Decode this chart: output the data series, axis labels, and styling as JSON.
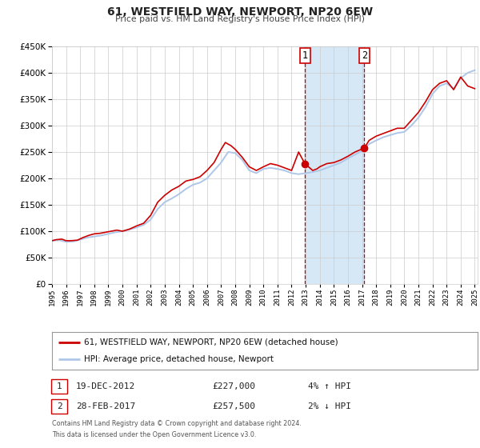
{
  "title": "61, WESTFIELD WAY, NEWPORT, NP20 6EW",
  "subtitle": "Price paid vs. HM Land Registry's House Price Index (HPI)",
  "legend_line1": "61, WESTFIELD WAY, NEWPORT, NP20 6EW (detached house)",
  "legend_line2": "HPI: Average price, detached house, Newport",
  "footnote1": "Contains HM Land Registry data © Crown copyright and database right 2024.",
  "footnote2": "This data is licensed under the Open Government Licence v3.0.",
  "annotation1": {
    "label": "1",
    "date": "19-DEC-2012",
    "price": "£227,000",
    "hpi": "4% ↑ HPI",
    "x_year": 2012.96,
    "y_val": 227000
  },
  "annotation2": {
    "label": "2",
    "date": "28-FEB-2017",
    "price": "£257,500",
    "hpi": "2% ↓ HPI",
    "x_year": 2017.16,
    "y_val": 257500
  },
  "ylim": [
    0,
    450000
  ],
  "xlim_start": 1995.0,
  "xlim_end": 2025.2,
  "hpi_color": "#aec6e8",
  "price_color": "#cc0000",
  "shade_color": "#d6e8f5",
  "grid_color": "#cccccc",
  "bg_color": "#ffffff",
  "hpi_data": [
    [
      1995.0,
      82000
    ],
    [
      1995.5,
      83000
    ],
    [
      1996.0,
      80000
    ],
    [
      1996.5,
      80500
    ],
    [
      1997.0,
      84000
    ],
    [
      1997.5,
      88000
    ],
    [
      1998.0,
      90000
    ],
    [
      1998.5,
      92000
    ],
    [
      1999.0,
      95000
    ],
    [
      1999.5,
      98000
    ],
    [
      2000.0,
      100000
    ],
    [
      2000.5,
      103000
    ],
    [
      2001.0,
      107000
    ],
    [
      2001.5,
      112000
    ],
    [
      2002.0,
      122000
    ],
    [
      2002.5,
      142000
    ],
    [
      2003.0,
      155000
    ],
    [
      2003.5,
      162000
    ],
    [
      2004.0,
      170000
    ],
    [
      2004.5,
      180000
    ],
    [
      2005.0,
      188000
    ],
    [
      2005.5,
      192000
    ],
    [
      2006.0,
      200000
    ],
    [
      2006.5,
      215000
    ],
    [
      2007.0,
      230000
    ],
    [
      2007.5,
      250000
    ],
    [
      2008.0,
      248000
    ],
    [
      2008.5,
      235000
    ],
    [
      2009.0,
      215000
    ],
    [
      2009.5,
      210000
    ],
    [
      2010.0,
      218000
    ],
    [
      2010.5,
      220000
    ],
    [
      2011.0,
      218000
    ],
    [
      2011.5,
      215000
    ],
    [
      2012.0,
      210000
    ],
    [
      2012.5,
      208000
    ],
    [
      2013.0,
      210000
    ],
    [
      2013.5,
      212000
    ],
    [
      2014.0,
      215000
    ],
    [
      2014.5,
      220000
    ],
    [
      2015.0,
      225000
    ],
    [
      2015.5,
      230000
    ],
    [
      2016.0,
      238000
    ],
    [
      2016.5,
      245000
    ],
    [
      2017.0,
      252000
    ],
    [
      2017.5,
      265000
    ],
    [
      2018.0,
      272000
    ],
    [
      2018.5,
      278000
    ],
    [
      2019.0,
      282000
    ],
    [
      2019.5,
      286000
    ],
    [
      2020.0,
      288000
    ],
    [
      2020.5,
      300000
    ],
    [
      2021.0,
      315000
    ],
    [
      2021.5,
      335000
    ],
    [
      2022.0,
      360000
    ],
    [
      2022.5,
      375000
    ],
    [
      2023.0,
      380000
    ],
    [
      2023.5,
      370000
    ],
    [
      2024.0,
      390000
    ],
    [
      2024.5,
      400000
    ],
    [
      2025.0,
      405000
    ]
  ],
  "price_data": [
    [
      1995.0,
      82000
    ],
    [
      1995.3,
      84000
    ],
    [
      1995.7,
      85000
    ],
    [
      1996.0,
      82000
    ],
    [
      1996.3,
      82000
    ],
    [
      1996.8,
      83000
    ],
    [
      1997.2,
      88000
    ],
    [
      1997.6,
      92000
    ],
    [
      1998.0,
      95000
    ],
    [
      1998.4,
      96000
    ],
    [
      1998.8,
      98000
    ],
    [
      1999.2,
      100000
    ],
    [
      1999.6,
      102000
    ],
    [
      2000.0,
      100000
    ],
    [
      2000.5,
      104000
    ],
    [
      2001.0,
      110000
    ],
    [
      2001.5,
      115000
    ],
    [
      2002.0,
      130000
    ],
    [
      2002.5,
      155000
    ],
    [
      2003.0,
      168000
    ],
    [
      2003.5,
      178000
    ],
    [
      2004.0,
      185000
    ],
    [
      2004.5,
      195000
    ],
    [
      2005.0,
      198000
    ],
    [
      2005.5,
      203000
    ],
    [
      2006.0,
      215000
    ],
    [
      2006.5,
      230000
    ],
    [
      2007.0,
      255000
    ],
    [
      2007.3,
      268000
    ],
    [
      2007.7,
      262000
    ],
    [
      2008.0,
      255000
    ],
    [
      2008.5,
      240000
    ],
    [
      2009.0,
      222000
    ],
    [
      2009.5,
      215000
    ],
    [
      2010.0,
      222000
    ],
    [
      2010.5,
      228000
    ],
    [
      2011.0,
      225000
    ],
    [
      2011.5,
      220000
    ],
    [
      2012.0,
      215000
    ],
    [
      2012.5,
      250000
    ],
    [
      2012.96,
      227000
    ],
    [
      2013.2,
      222000
    ],
    [
      2013.5,
      215000
    ],
    [
      2013.8,
      218000
    ],
    [
      2014.0,
      222000
    ],
    [
      2014.5,
      228000
    ],
    [
      2015.0,
      230000
    ],
    [
      2015.5,
      235000
    ],
    [
      2016.0,
      242000
    ],
    [
      2016.5,
      250000
    ],
    [
      2017.16,
      257500
    ],
    [
      2017.5,
      272000
    ],
    [
      2018.0,
      280000
    ],
    [
      2018.5,
      285000
    ],
    [
      2019.0,
      290000
    ],
    [
      2019.5,
      295000
    ],
    [
      2020.0,
      295000
    ],
    [
      2020.5,
      310000
    ],
    [
      2021.0,
      325000
    ],
    [
      2021.5,
      345000
    ],
    [
      2022.0,
      368000
    ],
    [
      2022.5,
      380000
    ],
    [
      2023.0,
      385000
    ],
    [
      2023.5,
      368000
    ],
    [
      2024.0,
      392000
    ],
    [
      2024.5,
      375000
    ],
    [
      2025.0,
      370000
    ]
  ]
}
